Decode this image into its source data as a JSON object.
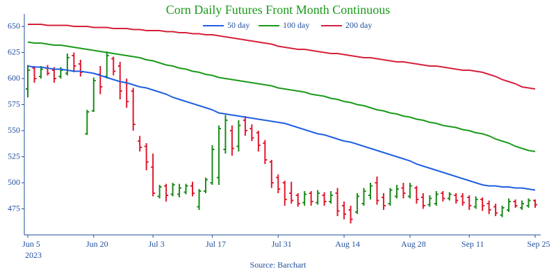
{
  "chart_data": {
    "type": "ohlc",
    "title": "Corn Daily Futures Front Month Continuous",
    "source": "Source: Barchart",
    "x_year": "2023",
    "x": [
      "2023-06-05",
      "2023-06-06",
      "2023-06-07",
      "2023-06-08",
      "2023-06-09",
      "2023-06-12",
      "2023-06-13",
      "2023-06-14",
      "2023-06-15",
      "2023-06-16",
      "2023-06-20",
      "2023-06-21",
      "2023-06-22",
      "2023-06-23",
      "2023-06-26",
      "2023-06-27",
      "2023-06-28",
      "2023-06-29",
      "2023-06-30",
      "2023-07-03",
      "2023-07-05",
      "2023-07-06",
      "2023-07-07",
      "2023-07-10",
      "2023-07-11",
      "2023-07-12",
      "2023-07-13",
      "2023-07-14",
      "2023-07-17",
      "2023-07-18",
      "2023-07-19",
      "2023-07-20",
      "2023-07-21",
      "2023-07-24",
      "2023-07-25",
      "2023-07-26",
      "2023-07-27",
      "2023-07-28",
      "2023-07-31",
      "2023-08-01",
      "2023-08-02",
      "2023-08-03",
      "2023-08-04",
      "2023-08-07",
      "2023-08-08",
      "2023-08-09",
      "2023-08-10",
      "2023-08-11",
      "2023-08-14",
      "2023-08-15",
      "2023-08-16",
      "2023-08-17",
      "2023-08-18",
      "2023-08-21",
      "2023-08-22",
      "2023-08-23",
      "2023-08-24",
      "2023-08-25",
      "2023-08-28",
      "2023-08-29",
      "2023-08-30",
      "2023-08-31",
      "2023-09-01",
      "2023-09-05",
      "2023-09-06",
      "2023-09-07",
      "2023-09-08",
      "2023-09-11",
      "2023-09-12",
      "2023-09-13",
      "2023-09-14",
      "2023-09-15",
      "2023-09-18",
      "2023-09-19",
      "2023-09-20",
      "2023-09-21",
      "2023-09-22",
      "2023-09-25"
    ],
    "open": [
      590,
      610,
      602,
      610,
      608,
      602,
      605,
      622,
      614,
      547,
      569,
      604,
      602,
      619,
      612,
      596,
      588,
      540,
      535,
      515,
      487,
      497,
      489,
      489,
      491,
      497,
      477,
      492,
      500,
      505,
      532,
      550,
      535,
      560,
      552,
      548,
      538,
      520,
      505,
      500,
      490,
      488,
      481,
      490,
      481,
      488,
      482,
      490,
      478,
      474,
      472,
      480,
      488,
      500,
      486,
      480,
      487,
      495,
      487,
      495,
      486,
      479,
      480,
      490,
      485,
      488,
      487,
      486,
      477,
      484,
      480,
      477,
      469,
      474,
      482,
      476,
      478,
      483
    ],
    "high": [
      613,
      612,
      612,
      613,
      611,
      611,
      624,
      625,
      618,
      570,
      601,
      612,
      626,
      621,
      616,
      600,
      591,
      545,
      538,
      528,
      498,
      499,
      500,
      499,
      499,
      501,
      494,
      505,
      536,
      555,
      565,
      555,
      560,
      564,
      556,
      550,
      541,
      522,
      508,
      502,
      501,
      490,
      492,
      492,
      493,
      491,
      492,
      495,
      482,
      478,
      490,
      495,
      500,
      506,
      490,
      495,
      498,
      500,
      500,
      497,
      490,
      488,
      492,
      492,
      491,
      490,
      490,
      488,
      487,
      486,
      483,
      480,
      478,
      485,
      484,
      483,
      485,
      484
    ],
    "low": [
      582,
      596,
      600,
      603,
      596,
      600,
      603,
      606,
      602,
      546,
      568,
      585,
      600,
      603,
      580,
      572,
      550,
      530,
      512,
      487,
      485,
      482,
      487,
      486,
      489,
      487,
      474,
      490,
      498,
      498,
      528,
      526,
      530,
      545,
      540,
      530,
      518,
      495,
      490,
      478,
      480,
      477,
      478,
      478,
      479,
      478,
      480,
      468,
      465,
      461,
      470,
      478,
      484,
      479,
      474,
      478,
      485,
      485,
      485,
      480,
      475,
      477,
      478,
      482,
      483,
      480,
      478,
      474,
      475,
      473,
      470,
      468,
      467,
      472,
      476,
      474,
      476,
      476
    ],
    "close": [
      608,
      600,
      609,
      605,
      600,
      608,
      620,
      612,
      606,
      568,
      598,
      592,
      622,
      607,
      588,
      578,
      556,
      534,
      520,
      490,
      496,
      488,
      498,
      495,
      497,
      490,
      492,
      503,
      532,
      552,
      560,
      533,
      555,
      550,
      543,
      536,
      522,
      500,
      494,
      484,
      483,
      480,
      489,
      482,
      490,
      482,
      488,
      473,
      470,
      465,
      487,
      492,
      497,
      483,
      478,
      493,
      494,
      490,
      497,
      484,
      478,
      485,
      489,
      485,
      489,
      483,
      481,
      478,
      484,
      478,
      474,
      471,
      476,
      482,
      478,
      480,
      483,
      479
    ],
    "up_color": "#1a8a1a",
    "down_color": "#e0182d",
    "series": [
      {
        "name": "50 day",
        "color": "#1f5fe0",
        "values": [
          612,
          611,
          611,
          610,
          609,
          609,
          608,
          607,
          607,
          606,
          605,
          603,
          601,
          599,
          597,
          596,
          594,
          592,
          591,
          589,
          587,
          585,
          582,
          580,
          578,
          576,
          574,
          572,
          570,
          567,
          566,
          565,
          564,
          563,
          562,
          561,
          560,
          559,
          558,
          557,
          555,
          553,
          551,
          549,
          547,
          546,
          544,
          542,
          540,
          539,
          537,
          535,
          533,
          531,
          529,
          527,
          525,
          523,
          521,
          518,
          516,
          514,
          512,
          510,
          508,
          506,
          504,
          502,
          500,
          498,
          497,
          497,
          496,
          496,
          495,
          495,
          494,
          493
        ]
      },
      {
        "name": "100 day",
        "color": "#1a9a1a",
        "values": [
          635,
          634,
          634,
          633,
          632,
          632,
          631,
          630,
          629,
          628,
          627,
          626,
          625,
          624,
          623,
          622,
          621,
          620,
          618,
          617,
          615,
          613,
          612,
          610,
          609,
          607,
          606,
          604,
          603,
          601,
          600,
          599,
          598,
          597,
          596,
          595,
          594,
          593,
          591,
          590,
          589,
          588,
          587,
          585,
          584,
          583,
          581,
          580,
          578,
          577,
          575,
          574,
          572,
          570,
          569,
          567,
          566,
          564,
          563,
          561,
          560,
          558,
          557,
          555,
          554,
          553,
          551,
          550,
          548,
          547,
          545,
          542,
          540,
          538,
          535,
          533,
          531,
          530
        ]
      },
      {
        "name": "200 day",
        "color": "#d6203a",
        "values": [
          652,
          652,
          652,
          651,
          651,
          651,
          651,
          650,
          650,
          650,
          649,
          649,
          649,
          648,
          648,
          648,
          647,
          647,
          646,
          646,
          646,
          645,
          645,
          644,
          644,
          643,
          643,
          642,
          642,
          641,
          640,
          639,
          638,
          637,
          636,
          635,
          634,
          633,
          631,
          630,
          629,
          628,
          628,
          627,
          626,
          625,
          624,
          624,
          623,
          622,
          621,
          620,
          620,
          619,
          618,
          617,
          616,
          616,
          615,
          614,
          613,
          612,
          612,
          611,
          610,
          609,
          608,
          608,
          607,
          606,
          604,
          602,
          599,
          597,
          595,
          592,
          591,
          590
        ]
      }
    ],
    "ylim": [
      450,
      662
    ],
    "yticks": [
      475,
      500,
      525,
      550,
      575,
      600,
      625,
      650
    ],
    "xticks": [
      {
        "value": "2023-06-05",
        "label": "Jun 5"
      },
      {
        "value": "2023-06-20",
        "label": "Jun 20"
      },
      {
        "value": "2023-07-03",
        "label": "Jul 3"
      },
      {
        "value": "2023-07-17",
        "label": "Jul 17"
      },
      {
        "value": "2023-07-31",
        "label": "Jul 31"
      },
      {
        "value": "2023-08-14",
        "label": "Aug 14"
      },
      {
        "value": "2023-08-28",
        "label": "Aug 28"
      },
      {
        "value": "2023-09-11",
        "label": "Sep 11"
      },
      {
        "value": "2023-09-25",
        "label": "Sep 25"
      }
    ],
    "legend": "top"
  }
}
